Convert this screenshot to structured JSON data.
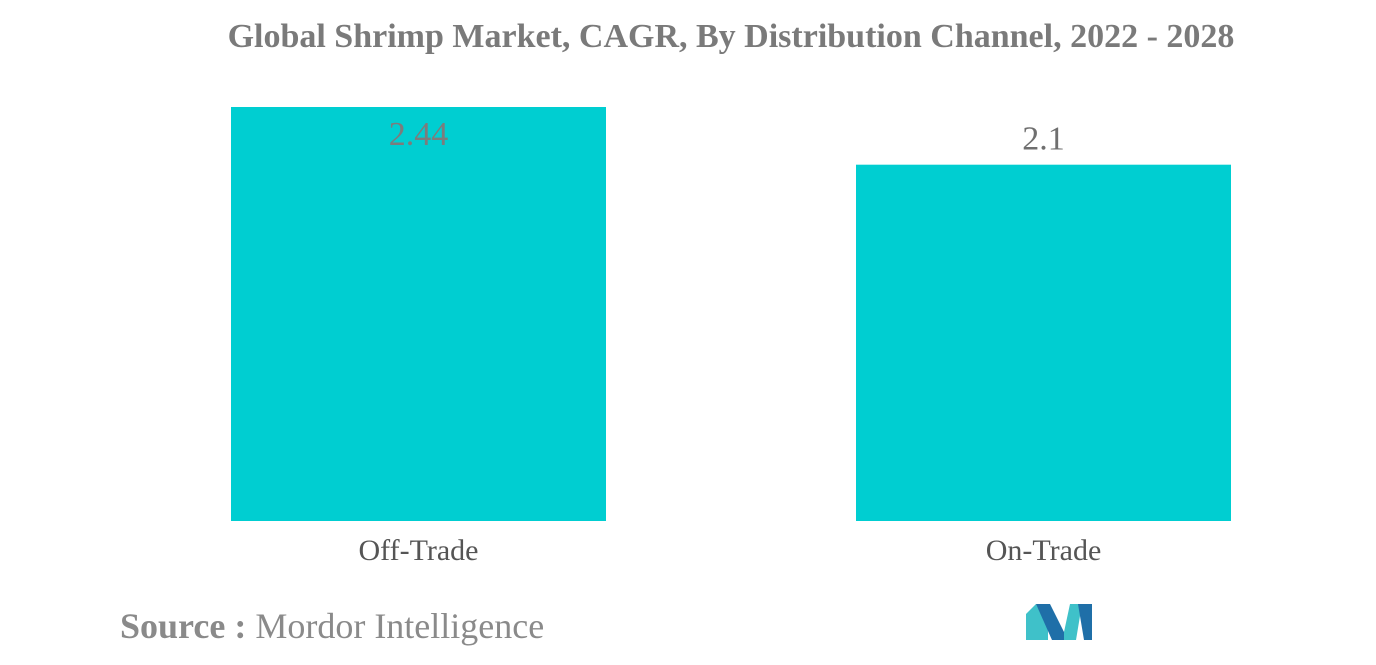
{
  "chart_data": {
    "type": "bar",
    "title": "Global Shrimp Market, CAGR, By Distribution Channel, 2022 - 2028",
    "categories": [
      "Off-Trade",
      "On-Trade"
    ],
    "values": [
      2.44,
      2.1
    ],
    "value_labels": [
      "2.44",
      "2.1"
    ],
    "xlabel": "",
    "ylabel": "",
    "ylim": [
      0,
      2.44
    ],
    "grid": false,
    "legend": "none",
    "bar_color": "#00CED1"
  },
  "source": {
    "label": "Source :",
    "name": "Mordor Intelligence"
  },
  "logo": {
    "icon": "mordor-intelligence-logo-icon",
    "colors": [
      "#3fc1c9",
      "#1f6fa8"
    ]
  }
}
